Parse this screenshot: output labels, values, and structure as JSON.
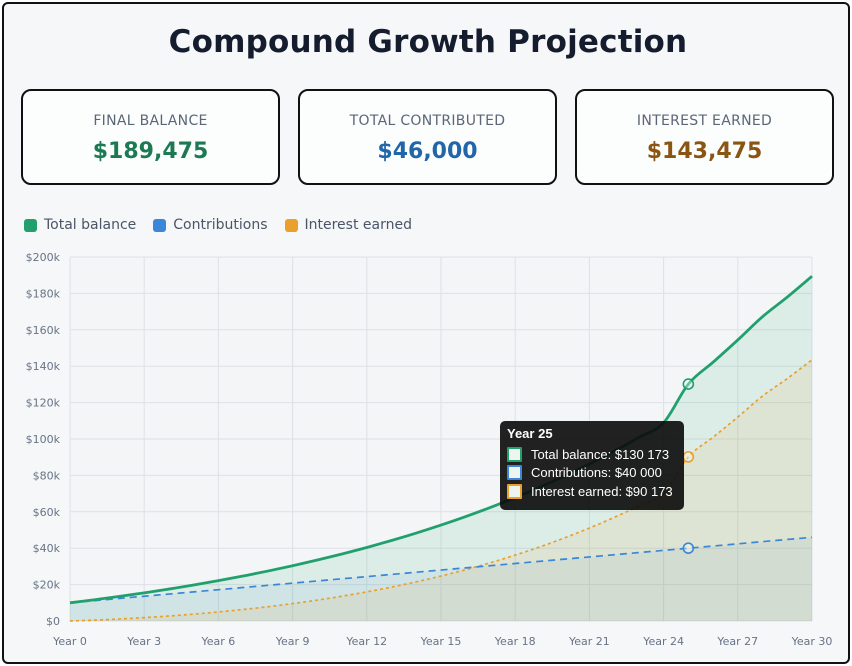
{
  "title": "Compound Growth Projection",
  "cards": [
    {
      "label": "FINAL BALANCE",
      "value": "$189,475",
      "color": "#1c7a52"
    },
    {
      "label": "TOTAL CONTRIBUTED",
      "value": "$46,000",
      "color": "#2266aa"
    },
    {
      "label": "INTEREST EARNED",
      "value": "$143,475",
      "color": "#8a5513"
    }
  ],
  "legend": [
    {
      "label": "Total balance",
      "color": "#21a06e"
    },
    {
      "label": "Contributions",
      "color": "#3a86d8"
    },
    {
      "label": "Interest earned",
      "color": "#e9a02c"
    }
  ],
  "tooltip": {
    "title": "Year 25",
    "rows": [
      {
        "label": "Total balance: $130 173",
        "color": "#21a06e"
      },
      {
        "label": "Contributions: $40 000",
        "color": "#3a86d8"
      },
      {
        "label": "Interest earned: $90 173",
        "color": "#e9a02c"
      }
    ]
  },
  "chart_data": {
    "type": "line",
    "x": [
      0,
      1,
      2,
      3,
      4,
      5,
      6,
      7,
      8,
      9,
      10,
      11,
      12,
      13,
      14,
      15,
      16,
      17,
      18,
      19,
      20,
      21,
      22,
      23,
      24,
      25,
      26,
      27,
      28,
      29,
      30
    ],
    "xticks": [
      0,
      3,
      6,
      9,
      12,
      15,
      18,
      21,
      24,
      27,
      30
    ],
    "xtick_labels": [
      "Year 0",
      "Year 3",
      "Year 6",
      "Year 9",
      "Year 12",
      "Year 15",
      "Year 18",
      "Year 21",
      "Year 24",
      "Year 27",
      "Year 30"
    ],
    "ylim": [
      0,
      200000
    ],
    "yticks": [
      0,
      20000,
      40000,
      60000,
      80000,
      100000,
      120000,
      140000,
      160000,
      180000,
      200000
    ],
    "ytick_labels": [
      "$0",
      "$20k",
      "$40k",
      "$60k",
      "$80k",
      "$100k",
      "$120k",
      "$140k",
      "$160k",
      "$180k",
      "$200k"
    ],
    "grid": true,
    "legend_position": "top-left",
    "highlight_x": 25,
    "series": [
      {
        "name": "Total balance",
        "color": "#21a06e",
        "style": "solid",
        "values": [
          10000,
          11700,
          13519,
          15465,
          17548,
          19776,
          22160,
          24711,
          27441,
          30362,
          33487,
          36831,
          40409,
          44238,
          48334,
          52718,
          57408,
          62427,
          67797,
          73542,
          79690,
          86268,
          93307,
          100838,
          108897,
          130173,
          142185,
          154437,
          167200,
          178000,
          189475
        ]
      },
      {
        "name": "Contributions",
        "color": "#3a86d8",
        "style": "dashed",
        "values": [
          10000,
          11200,
          12400,
          13600,
          14800,
          16000,
          17200,
          18400,
          19600,
          20800,
          22000,
          23200,
          24400,
          25600,
          26800,
          28000,
          29200,
          30400,
          31600,
          32800,
          34000,
          35200,
          36400,
          37600,
          38800,
          40000,
          41200,
          42400,
          43600,
          44800,
          46000
        ]
      },
      {
        "name": "Interest earned",
        "color": "#e9a02c",
        "style": "dotted",
        "values": [
          0,
          500,
          1119,
          1865,
          2748,
          3776,
          4960,
          6311,
          7841,
          9562,
          11487,
          13631,
          16009,
          18638,
          21534,
          24718,
          28208,
          32027,
          36197,
          40742,
          45690,
          51068,
          56907,
          63238,
          70097,
          90173,
          100985,
          112037,
          123600,
          133200,
          143475
        ]
      }
    ]
  }
}
